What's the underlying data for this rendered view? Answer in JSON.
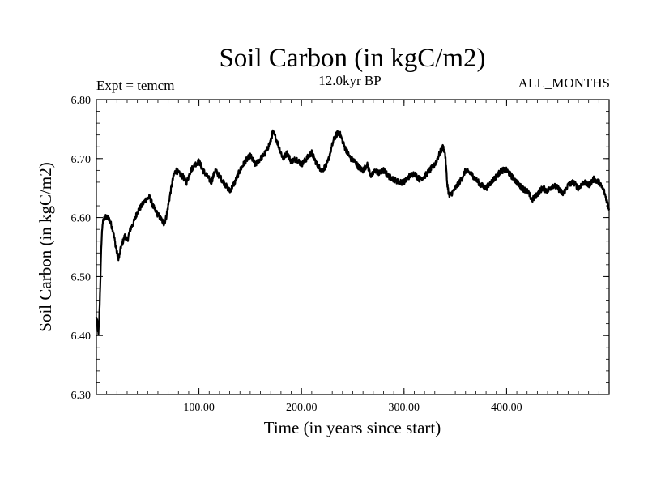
{
  "chart_data": {
    "type": "line",
    "title": "Soil Carbon (in kgC/m2)",
    "subtitle_left": "Expt = temcm",
    "subtitle_center": "12.0kyr BP",
    "subtitle_right": "ALL_MONTHS",
    "xlabel": "Time (in years since start)",
    "ylabel": "Soil Carbon (in kgC/m2)",
    "xlim": [
      0,
      500
    ],
    "ylim": [
      6.3,
      6.8
    ],
    "xticks": [
      100,
      200,
      300,
      400
    ],
    "xtick_labels": [
      "100.00",
      "200.00",
      "300.00",
      "400.00"
    ],
    "yticks": [
      6.3,
      6.4,
      6.5,
      6.6,
      6.7,
      6.8
    ],
    "ytick_labels": [
      "6.30",
      "6.40",
      "6.50",
      "6.60",
      "6.70",
      "6.80"
    ],
    "noise_amplitude": 0.005,
    "series": [
      {
        "name": "Soil Carbon",
        "x": [
          0,
          1,
          2,
          3,
          4,
          5,
          6,
          8,
          10,
          12,
          14,
          16,
          18,
          20,
          22,
          24,
          26,
          28,
          30,
          33,
          36,
          40,
          44,
          48,
          52,
          55,
          58,
          62,
          66,
          68,
          70,
          72,
          74,
          76,
          78,
          80,
          84,
          88,
          92,
          96,
          100,
          104,
          108,
          112,
          116,
          120,
          124,
          128,
          130,
          135,
          140,
          145,
          150,
          155,
          160,
          165,
          170,
          172,
          175,
          178,
          182,
          186,
          190,
          195,
          200,
          205,
          210,
          215,
          220,
          225,
          228,
          232,
          236,
          238,
          240,
          242,
          245,
          248,
          252,
          256,
          260,
          264,
          268,
          272,
          276,
          280,
          285,
          290,
          295,
          300,
          305,
          310,
          315,
          320,
          325,
          330,
          335,
          338,
          340,
          342,
          344,
          348,
          352,
          356,
          360,
          365,
          370,
          375,
          380,
          385,
          390,
          395,
          400,
          405,
          410,
          415,
          420,
          425,
          430,
          435,
          440,
          445,
          450,
          455,
          460,
          465,
          470,
          475,
          480,
          485,
          490,
          495,
          500
        ],
        "values": [
          6.43,
          6.42,
          6.4,
          6.44,
          6.5,
          6.56,
          6.59,
          6.6,
          6.6,
          6.6,
          6.59,
          6.58,
          6.56,
          6.54,
          6.53,
          6.55,
          6.56,
          6.57,
          6.56,
          6.58,
          6.59,
          6.61,
          6.62,
          6.63,
          6.635,
          6.62,
          6.61,
          6.6,
          6.59,
          6.6,
          6.62,
          6.64,
          6.66,
          6.675,
          6.68,
          6.675,
          6.67,
          6.66,
          6.68,
          6.69,
          6.695,
          6.68,
          6.67,
          6.66,
          6.68,
          6.67,
          6.66,
          6.65,
          6.645,
          6.66,
          6.68,
          6.695,
          6.705,
          6.69,
          6.7,
          6.71,
          6.73,
          6.745,
          6.735,
          6.72,
          6.7,
          6.71,
          6.695,
          6.7,
          6.69,
          6.7,
          6.71,
          6.69,
          6.68,
          6.69,
          6.71,
          6.735,
          6.745,
          6.74,
          6.73,
          6.72,
          6.71,
          6.7,
          6.695,
          6.685,
          6.68,
          6.69,
          6.67,
          6.68,
          6.675,
          6.68,
          6.67,
          6.665,
          6.66,
          6.66,
          6.67,
          6.675,
          6.665,
          6.67,
          6.68,
          6.69,
          6.71,
          6.72,
          6.71,
          6.66,
          6.635,
          6.645,
          6.655,
          6.665,
          6.68,
          6.675,
          6.665,
          6.655,
          6.65,
          6.66,
          6.67,
          6.68,
          6.68,
          6.67,
          6.66,
          6.65,
          6.645,
          6.63,
          6.64,
          6.65,
          6.645,
          6.655,
          6.65,
          6.64,
          6.655,
          6.66,
          6.65,
          6.66,
          6.655,
          6.665,
          6.66,
          6.645,
          6.615
        ]
      }
    ]
  }
}
